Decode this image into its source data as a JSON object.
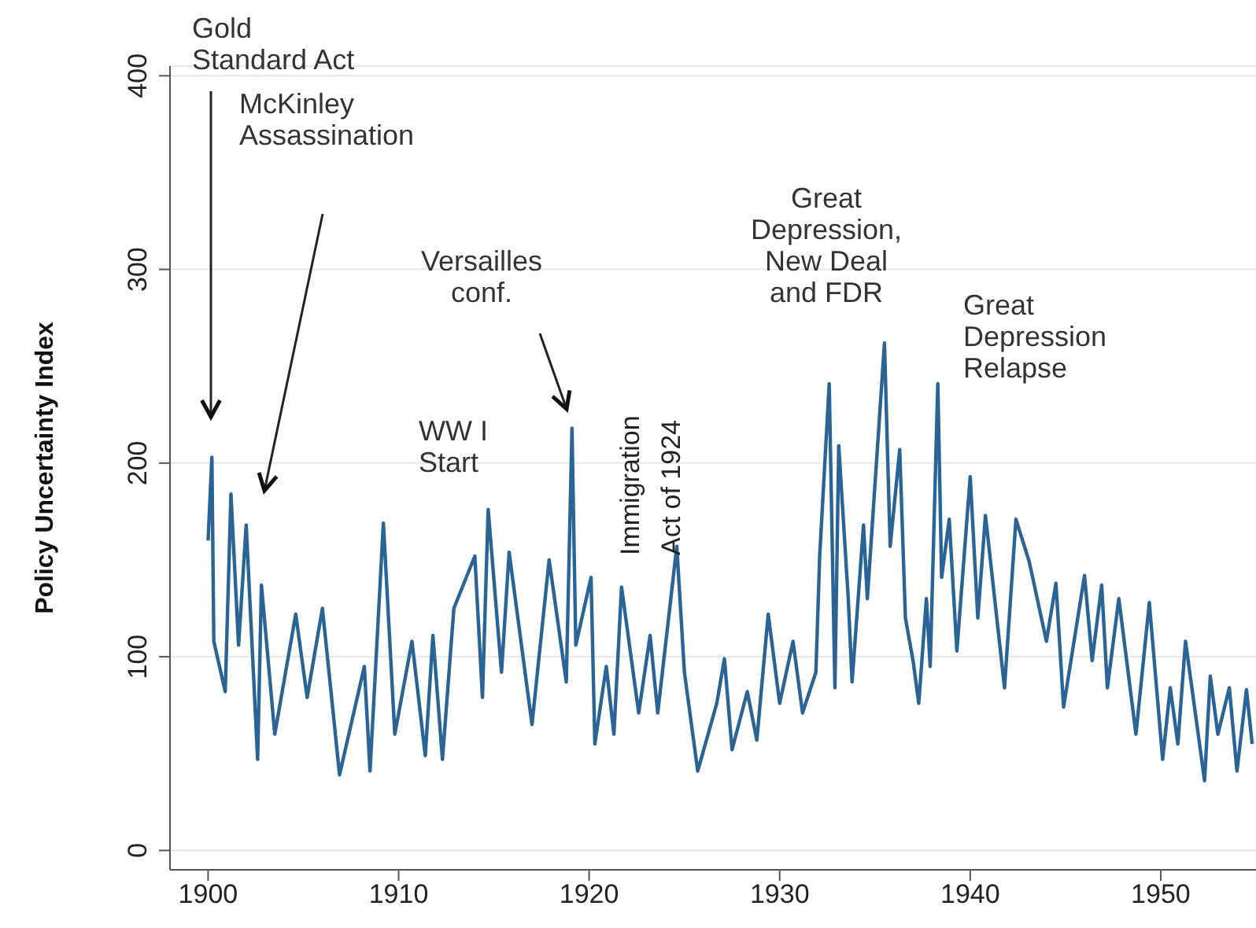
{
  "chart_data": {
    "type": "line",
    "ylabel": "Policy Uncertainty Index",
    "x": [
      1900.0,
      1900.2,
      1900.3,
      1900.9,
      1901.2,
      1901.6,
      1902.0,
      1902.6,
      1902.8,
      1903.5,
      1904.6,
      1905.2,
      1906.0,
      1906.9,
      1908.2,
      1908.5,
      1909.2,
      1909.8,
      1910.7,
      1911.4,
      1911.8,
      1912.3,
      1912.9,
      1914.0,
      1914.4,
      1914.7,
      1915.4,
      1915.8,
      1917.0,
      1917.9,
      1918.8,
      1919.1,
      1919.3,
      1920.1,
      1920.3,
      1920.9,
      1921.3,
      1921.7,
      1922.6,
      1923.2,
      1923.6,
      1924.6,
      1925.0,
      1925.7,
      1926.7,
      1927.1,
      1927.5,
      1928.3,
      1928.8,
      1929.4,
      1930.0,
      1930.7,
      1931.2,
      1931.9,
      1932.1,
      1932.6,
      1932.9,
      1933.1,
      1933.6,
      1933.8,
      1934.4,
      1934.6,
      1935.5,
      1935.8,
      1936.3,
      1936.6,
      1937.0,
      1937.3,
      1937.7,
      1937.9,
      1938.3,
      1938.5,
      1938.9,
      1939.3,
      1940.0,
      1940.4,
      1940.8,
      1941.8,
      1942.4,
      1943.1,
      1944.0,
      1944.5,
      1944.9,
      1946.0,
      1946.4,
      1946.9,
      1947.2,
      1947.8,
      1948.7,
      1949.4,
      1950.1,
      1950.5,
      1950.9,
      1951.3,
      1952.3,
      1952.6,
      1953.0,
      1953.6,
      1954.0,
      1954.5,
      1954.8
    ],
    "series": [
      {
        "color": "#2a6496",
        "values": [
          160,
          203,
          108,
          82,
          184,
          106,
          168,
          47,
          137,
          60,
          122,
          79,
          125,
          39,
          95,
          41,
          169,
          60,
          108,
          49,
          111,
          47,
          125,
          152,
          79,
          176,
          92,
          154,
          65,
          150,
          87,
          218,
          106,
          141,
          55,
          95,
          60,
          136,
          71,
          111,
          71,
          157,
          92,
          41,
          76,
          99,
          52,
          82,
          57,
          122,
          76,
          108,
          71,
          92,
          152,
          241,
          84,
          209,
          130,
          87,
          168,
          130,
          262,
          157,
          207,
          120,
          98,
          76,
          130,
          95,
          241,
          141,
          171,
          103,
          193,
          120,
          173,
          84,
          171,
          149,
          108,
          138,
          74,
          142,
          98,
          137,
          84,
          130,
          60,
          128,
          47,
          84,
          55,
          108,
          36,
          90,
          60,
          84,
          41,
          83,
          55
        ]
      }
    ],
    "xlim": [
      1898,
      1955
    ],
    "xticks": [
      1900,
      1910,
      1920,
      1930,
      1940,
      1950
    ],
    "ylim": [
      -10,
      405
    ],
    "yticks": [
      0,
      100,
      200,
      300,
      400
    ],
    "grid": "y",
    "marker": "none",
    "line_style": "solid",
    "annotations": [
      "Gold\nStandard Act",
      "McKinley\nAssassination",
      "WW I\nStart",
      "Versailles\nconf.",
      "Immigration\nAct of 1924",
      "Great\nDepression,\nNew Deal\nand FDR",
      "Great\nDepression\nRelapse"
    ]
  }
}
